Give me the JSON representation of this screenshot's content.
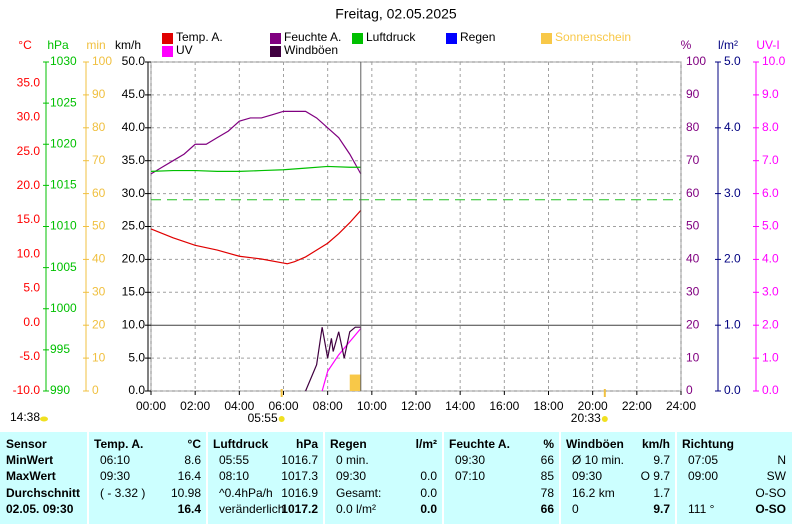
{
  "chart_data": {
    "type": "line",
    "title": "Freitag, 02.05.2025",
    "xlim": [
      0,
      24
    ],
    "xticks": [
      {
        "value": 0,
        "label": "00:00"
      },
      {
        "value": 2,
        "label": "02:00"
      },
      {
        "value": 4,
        "label": "04:00"
      },
      {
        "value": 6,
        "label": "06:00"
      },
      {
        "value": 8,
        "label": "08:00"
      },
      {
        "value": 10,
        "label": "10:00"
      },
      {
        "value": 12,
        "label": "12:00"
      },
      {
        "value": 14,
        "label": "14:00"
      },
      {
        "value": 16,
        "label": "16:00"
      },
      {
        "value": 18,
        "label": "18:00"
      },
      {
        "value": 20,
        "label": "20:00"
      },
      {
        "value": 22,
        "label": "22:00"
      },
      {
        "value": 24,
        "label": "24:00"
      }
    ],
    "grid": true,
    "axes": [
      {
        "id": "temp",
        "label": "°C",
        "color": "#ff0000",
        "lim": [
          -10,
          38.1
        ],
        "ticks": [
          {
            "value": -10,
            "label": "-10.0"
          },
          {
            "value": -5,
            "label": "-5.0"
          },
          {
            "value": 0,
            "label": "0.0"
          },
          {
            "value": 5,
            "label": "5.0"
          },
          {
            "value": 10,
            "label": "10.0"
          },
          {
            "value": 15,
            "label": "15.0"
          },
          {
            "value": 20,
            "label": "20.0"
          },
          {
            "value": 25,
            "label": "25.0"
          },
          {
            "value": 30,
            "label": "30.0"
          },
          {
            "value": 35,
            "label": "35.0"
          }
        ]
      },
      {
        "id": "hpa",
        "label": "hPa",
        "color": "#00c000",
        "lim": [
          990,
          1030
        ],
        "ticks": [
          990,
          995,
          1000,
          1005,
          1010,
          1015,
          1020,
          1025,
          1030
        ]
      },
      {
        "id": "min",
        "label": "min",
        "color": "#f0c040",
        "lim": [
          0,
          100
        ],
        "ticks": [
          0,
          10,
          20,
          30,
          40,
          50,
          60,
          70,
          80,
          90,
          100
        ]
      },
      {
        "id": "kmh",
        "label": "km/h",
        "color": "#000000",
        "lim": [
          0,
          50
        ],
        "ticks": [
          {
            "value": 0,
            "label": "0.0"
          },
          {
            "value": 5,
            "label": "5.0"
          },
          {
            "value": 10,
            "label": "10.0"
          },
          {
            "value": 15,
            "label": "15.0"
          },
          {
            "value": 20,
            "label": "20.0"
          },
          {
            "value": 25,
            "label": "25.0"
          },
          {
            "value": 30,
            "label": "30.0"
          },
          {
            "value": 35,
            "label": "35.0"
          },
          {
            "value": 40,
            "label": "40.0"
          },
          {
            "value": 45,
            "label": "45.0"
          },
          {
            "value": 50,
            "label": "50.0"
          }
        ]
      },
      {
        "id": "pct",
        "label": "%",
        "color": "#800080",
        "lim": [
          0,
          100
        ],
        "ticks": [
          0,
          10,
          20,
          30,
          40,
          50,
          60,
          70,
          80,
          90,
          100
        ]
      },
      {
        "id": "lm2",
        "label": "l/m²",
        "color": "#000080",
        "lim": [
          0,
          5
        ],
        "ticks": [
          {
            "value": 0,
            "label": "0.0"
          },
          {
            "value": 1,
            "label": "1.0"
          },
          {
            "value": 2,
            "label": "2.0"
          },
          {
            "value": 3,
            "label": "3.0"
          },
          {
            "value": 4,
            "label": "4.0"
          },
          {
            "value": 5,
            "label": "5.0"
          }
        ]
      },
      {
        "id": "uv",
        "label": "UV-I",
        "color": "#ff00ff",
        "lim": [
          0,
          10
        ],
        "ticks": [
          {
            "value": 0,
            "label": "0.0"
          },
          {
            "value": 1,
            "label": "1.0"
          },
          {
            "value": 2,
            "label": "2.0"
          },
          {
            "value": 3,
            "label": "3.0"
          },
          {
            "value": 4,
            "label": "4.0"
          },
          {
            "value": 5,
            "label": "5.0"
          },
          {
            "value": 6,
            "label": "6.0"
          },
          {
            "value": 7,
            "label": "7.0"
          },
          {
            "value": 8,
            "label": "8.0"
          },
          {
            "value": 9,
            "label": "9.0"
          },
          {
            "value": 10,
            "label": "10.0"
          }
        ]
      }
    ],
    "series": [
      {
        "name": "Temp. A.",
        "color": "#e00000",
        "axis": "temp",
        "kind": "line",
        "x": [
          0,
          1,
          2,
          3,
          4,
          5,
          6,
          6.17,
          6.5,
          7,
          8,
          8.5,
          9,
          9.5
        ],
        "values": [
          13.7,
          12.4,
          11.3,
          10.6,
          9.7,
          9.3,
          8.7,
          8.6,
          8.9,
          9.6,
          11.6,
          13.0,
          14.6,
          16.4
        ]
      },
      {
        "name": "Feuchte A.",
        "color": "#800080",
        "axis": "pct",
        "kind": "line",
        "x": [
          0,
          0.5,
          1,
          1.5,
          2,
          2.5,
          3,
          3.5,
          4,
          4.5,
          5,
          5.5,
          6,
          6.5,
          7,
          7.5,
          8,
          8.5,
          9,
          9.25,
          9.5
        ],
        "values": [
          66,
          68,
          70,
          72,
          75,
          75,
          77,
          79,
          82,
          83,
          83,
          84,
          85,
          85,
          85,
          83,
          80,
          77,
          72,
          69,
          66
        ]
      },
      {
        "name": "Luftdruck",
        "color": "#00c000",
        "axis": "hpa",
        "kind": "line",
        "x": [
          0,
          1,
          2,
          3,
          4,
          5,
          6,
          7,
          8,
          9,
          9.5
        ],
        "values": [
          1016.7,
          1016.8,
          1016.8,
          1016.7,
          1016.7,
          1016.8,
          1016.9,
          1017.1,
          1017.3,
          1017.2,
          1017.2
        ]
      },
      {
        "name": "Regen",
        "color": "#0000ff",
        "axis": "lm2",
        "kind": "line"
      },
      {
        "name": "Sonnenschein",
        "color": "#f8c848",
        "axis": "min",
        "kind": "bar",
        "bins": [
          9.0,
          9.5
        ],
        "values": [
          5
        ]
      },
      {
        "name": "UV",
        "color": "#ff00ff",
        "axis": "uv",
        "kind": "line",
        "x": [
          7.75,
          8,
          8.5,
          9,
          9.5
        ],
        "values": [
          0,
          0.6,
          1.1,
          1.5,
          1.9
        ]
      },
      {
        "name": "Windböen",
        "color": "#400040",
        "axis": "kmh",
        "kind": "line",
        "x": [
          7.0,
          7.25,
          7.5,
          7.75,
          8.0,
          8.17,
          8.25,
          8.5,
          8.75,
          9.0,
          9.25,
          9.5
        ],
        "values": [
          0,
          2,
          4,
          9.7,
          5,
          8,
          6,
          9,
          5,
          9,
          9.7,
          9.7
        ]
      }
    ],
    "pressure_reference": 1013.25,
    "now": 9.5,
    "sun": {
      "day_length": "14:38",
      "sunrise": {
        "label": "05:55",
        "x": 5.917
      },
      "sunset": {
        "label": "20:33",
        "x": 20.55
      }
    }
  },
  "table": {
    "columns": [
      {
        "title": "Sensor",
        "rows": [
          [
            "MinWert"
          ],
          [
            "MaxWert"
          ],
          [
            "Durchschnitt"
          ],
          [
            "02.05. 09:30"
          ]
        ]
      },
      {
        "title": "Temp. A.",
        "unit": "°C",
        "rows": [
          [
            "06:10",
            "8.6"
          ],
          [
            "09:30",
            "16.4"
          ],
          [
            "( - 3.32 )",
            "10.98"
          ],
          [
            null,
            "16.4"
          ]
        ]
      },
      {
        "title": "Luftdruck",
        "unit": "hPa",
        "rows": [
          [
            "05:55",
            "1016.7"
          ],
          [
            "08:10",
            "1017.3"
          ],
          [
            "^0.4hPa/h",
            "1016.9"
          ],
          [
            "veränderlich",
            "1017.2"
          ]
        ]
      },
      {
        "title": "Regen",
        "unit": "l/m²",
        "rows": [
          [
            "0 min.",
            null
          ],
          [
            "09:30",
            "0.0"
          ],
          [
            "Gesamt:",
            "0.0"
          ],
          [
            "0.0 l/m²",
            "0.0"
          ]
        ]
      },
      {
        "title": "Feuchte A.",
        "unit": "%",
        "rows": [
          [
            "09:30",
            "66"
          ],
          [
            "07:10",
            "85"
          ],
          [
            null,
            "78"
          ],
          [
            null,
            "66"
          ]
        ]
      },
      {
        "title": "Windböen",
        "unit": "km/h",
        "rows": [
          [
            "Ø 10 min.",
            "9.7"
          ],
          [
            "09:30",
            "O 9.7"
          ],
          [
            "16.2 km",
            "1.7"
          ],
          [
            "0",
            "9.7"
          ]
        ]
      },
      {
        "title": "Richtung",
        "rows": [
          [
            "07:05",
            "N"
          ],
          [
            "09:00",
            "SW"
          ],
          [
            null,
            "O-SO"
          ],
          [
            "111 °",
            "O-SO"
          ]
        ]
      }
    ]
  }
}
